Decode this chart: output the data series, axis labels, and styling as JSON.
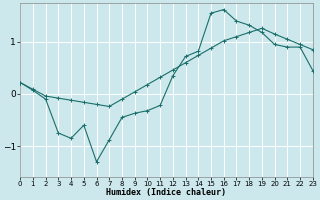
{
  "xlabel": "Humidex (Indice chaleur)",
  "bg_color": "#cce8ec",
  "line_color": "#1a6e6a",
  "grid_color": "#ffffff",
  "xlim": [
    0,
    23
  ],
  "ylim": [
    -1.6,
    1.75
  ],
  "yticks": [
    -1,
    0,
    1
  ],
  "xticks": [
    0,
    1,
    2,
    3,
    4,
    5,
    6,
    7,
    8,
    9,
    10,
    11,
    12,
    13,
    14,
    15,
    16,
    17,
    18,
    19,
    20,
    21,
    22,
    23
  ],
  "series1_x": [
    0,
    1,
    2,
    3,
    4,
    5,
    6,
    7,
    8,
    9,
    10,
    11,
    12,
    13,
    14,
    15,
    16,
    17,
    18,
    19,
    20,
    21,
    22,
    23
  ],
  "series1_y": [
    0.22,
    0.09,
    -0.04,
    -0.08,
    -0.12,
    -0.16,
    -0.2,
    -0.24,
    -0.1,
    0.04,
    0.18,
    0.32,
    0.46,
    0.6,
    0.74,
    0.88,
    1.02,
    1.1,
    1.18,
    1.26,
    1.15,
    1.05,
    0.95,
    0.85
  ],
  "series2_x": [
    0,
    1,
    2,
    3,
    4,
    5,
    6,
    7,
    8,
    9,
    10,
    11,
    12,
    13,
    14,
    15,
    16,
    17,
    18,
    19,
    20,
    21,
    22,
    23
  ],
  "series2_y": [
    0.22,
    0.07,
    -0.1,
    -0.75,
    -0.85,
    -0.6,
    -1.3,
    -0.88,
    -0.45,
    -0.37,
    -0.32,
    -0.22,
    0.35,
    0.72,
    0.82,
    1.55,
    1.62,
    1.4,
    1.32,
    1.18,
    0.95,
    0.9,
    0.9,
    0.45
  ]
}
